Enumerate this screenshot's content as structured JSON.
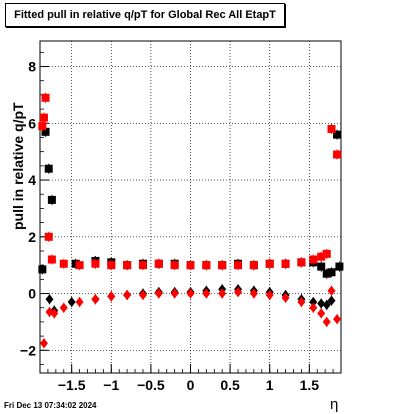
{
  "window": {
    "timestamp": "Fri Dec 13 07:34:02 2024"
  },
  "chart_data": {
    "type": "scatter",
    "title": "Fitted pull in relative q/pT for Global Rec All EtapT",
    "xlabel": "η",
    "ylabel": "pull in relative q/pT",
    "xlim": [
      -1.9,
      1.9
    ],
    "ylim": [
      -2.8,
      8.9
    ],
    "xticks": [
      -1.5,
      -1,
      -0.5,
      0,
      0.5,
      1,
      1.5
    ],
    "xtick_labels": [
      "−1.5",
      "−1",
      "−0.5",
      "0",
      "0.5",
      "1",
      "1.5"
    ],
    "yticks": [
      -2,
      0,
      2,
      4,
      6,
      8
    ],
    "ytick_labels": [
      "−2",
      "0",
      "2",
      "4",
      "6",
      "8"
    ],
    "grid": true,
    "series": [
      {
        "color": "#000000",
        "marker": "square",
        "x": [
          -1.87,
          -1.83,
          -1.79,
          -1.75,
          -1.45,
          -1.2,
          -1.0,
          -0.8,
          -0.6,
          -0.4,
          -0.2,
          0.0,
          0.2,
          0.4,
          0.6,
          0.8,
          1.0,
          1.2,
          1.4,
          1.55,
          1.65,
          1.72,
          1.78,
          1.85,
          1.88
        ],
        "y": [
          0.85,
          5.7,
          4.4,
          3.3,
          1.05,
          1.15,
          1.1,
          1.0,
          1.05,
          1.05,
          1.05,
          1.0,
          1.0,
          1.0,
          1.05,
          1.0,
          1.05,
          1.05,
          1.1,
          1.1,
          0.95,
          0.7,
          0.75,
          5.6,
          0.95
        ]
      },
      {
        "color": "#000000",
        "marker": "diamond",
        "x": [
          -1.78,
          -1.72,
          -1.5,
          -1.2,
          -1.0,
          -0.8,
          -0.6,
          -0.4,
          -0.2,
          0.0,
          0.2,
          0.4,
          0.6,
          0.8,
          1.0,
          1.2,
          1.4,
          1.55,
          1.65,
          1.72,
          1.78
        ],
        "y": [
          -0.2,
          -0.6,
          -0.3,
          -0.2,
          -0.1,
          -0.05,
          0.0,
          0.05,
          0.05,
          0.05,
          0.1,
          0.15,
          0.15,
          0.1,
          0.05,
          -0.05,
          -0.2,
          -0.3,
          -0.35,
          -0.4,
          -0.25
        ]
      },
      {
        "color": "#ff0000",
        "marker": "square",
        "x": [
          -1.87,
          -1.85,
          -1.83,
          -1.79,
          -1.75,
          -1.6,
          -1.4,
          -1.2,
          -1.0,
          -0.8,
          -0.6,
          -0.4,
          -0.2,
          0.0,
          0.2,
          0.4,
          0.6,
          0.8,
          1.0,
          1.2,
          1.4,
          1.55,
          1.65,
          1.72,
          1.78,
          1.85
        ],
        "y": [
          5.9,
          6.2,
          6.9,
          2.0,
          1.2,
          1.05,
          1.0,
          1.05,
          1.0,
          1.0,
          1.0,
          1.05,
          1.0,
          1.0,
          1.0,
          1.0,
          1.0,
          1.0,
          1.05,
          1.05,
          1.1,
          1.2,
          1.3,
          1.4,
          5.8,
          4.9
        ]
      },
      {
        "color": "#ff0000",
        "marker": "diamond",
        "x": [
          -1.85,
          -1.78,
          -1.72,
          -1.6,
          -1.4,
          -1.2,
          -1.0,
          -0.8,
          -0.6,
          -0.4,
          -0.2,
          0.0,
          0.2,
          0.4,
          0.6,
          0.8,
          1.0,
          1.2,
          1.4,
          1.55,
          1.65,
          1.72,
          1.78,
          1.85
        ],
        "y": [
          -1.75,
          -0.65,
          -0.7,
          -0.5,
          -0.3,
          -0.2,
          -0.1,
          -0.05,
          -0.05,
          0.0,
          0.0,
          0.0,
          0.0,
          0.0,
          0.05,
          0.0,
          -0.05,
          -0.15,
          -0.3,
          -0.5,
          -0.7,
          -1.0,
          0.1,
          -0.9
        ]
      }
    ]
  }
}
